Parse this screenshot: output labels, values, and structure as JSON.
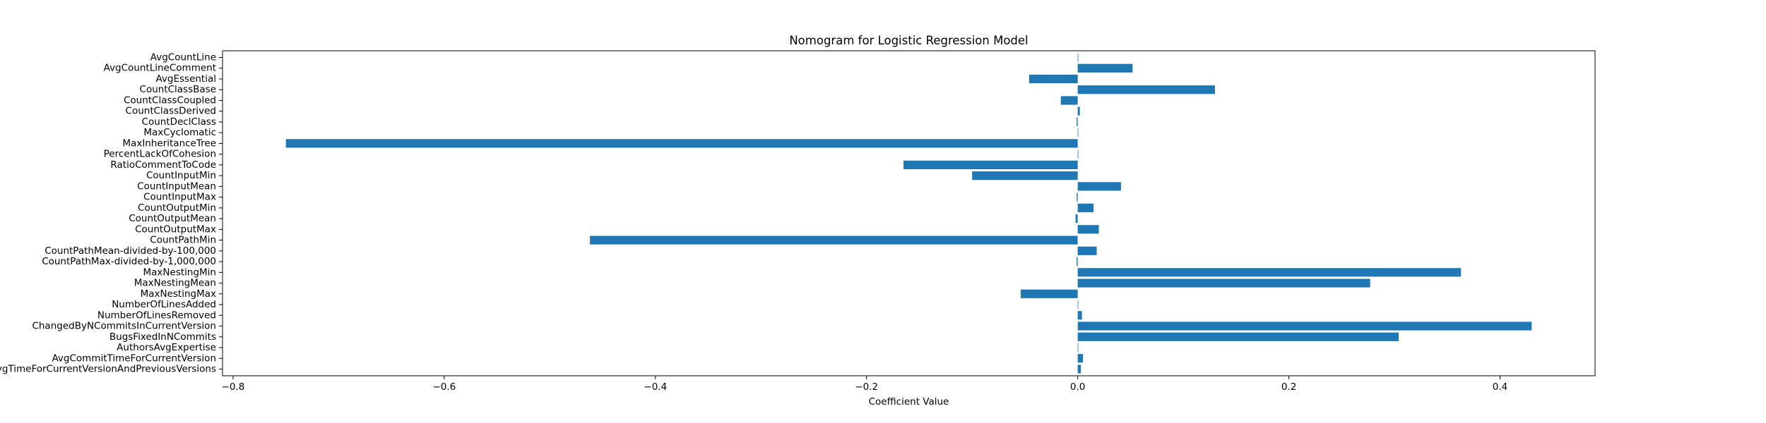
{
  "chart_data": {
    "type": "bar",
    "orientation": "horizontal",
    "title": "Nomogram for Logistic Regression Model",
    "xlabel": "Coefficient Value",
    "ylabel": "",
    "xlim": [
      -0.81,
      0.49
    ],
    "xticks": [
      -0.8,
      -0.6,
      -0.4,
      -0.2,
      0.0,
      0.2,
      0.4
    ],
    "xtick_labels": [
      "−0.8",
      "−0.6",
      "−0.4",
      "−0.2",
      "0.0",
      "0.2",
      "0.4"
    ],
    "bar_color": "#1f77b4",
    "grid": false,
    "categories": [
      "AvgCountLine",
      "AvgCountLineComment",
      "AvgEssential",
      "CountClassBase",
      "CountClassCoupled",
      "CountClassDerived",
      "CountDeclClass",
      "MaxCyclomatic",
      "MaxInheritanceTree",
      "PercentLackOfCohesion",
      "RatioCommentToCode",
      "CountInputMin",
      "CountInputMean",
      "CountInputMax",
      "CountOutputMin",
      "CountOutputMean",
      "CountOutputMax",
      "CountPathMin",
      "CountPathMean-divided-by-100,000",
      "CountPathMax-divided-by-1,000,000",
      "MaxNestingMin",
      "MaxNestingMean",
      "MaxNestingMax",
      "NumberOfLinesAdded",
      "NumberOfLinesRemoved",
      "ChangedByNCommitsInCurrentVersion",
      "BugsFixedInNCommits",
      "AuthorsAvgExpertise",
      "AvgCommitTimeForCurrentVersion",
      "AvgTimeForCurrentVersionAndPreviousVersions"
    ],
    "values": [
      0.0005,
      0.052,
      -0.046,
      0.13,
      -0.016,
      0.002,
      -0.001,
      0.0003,
      -0.75,
      0.0,
      -0.165,
      -0.1,
      0.041,
      -0.001,
      0.015,
      -0.002,
      0.02,
      -0.462,
      0.018,
      -0.001,
      0.363,
      0.277,
      -0.054,
      0.0,
      0.004,
      0.43,
      0.304,
      0.0005,
      0.005,
      0.003
    ]
  }
}
